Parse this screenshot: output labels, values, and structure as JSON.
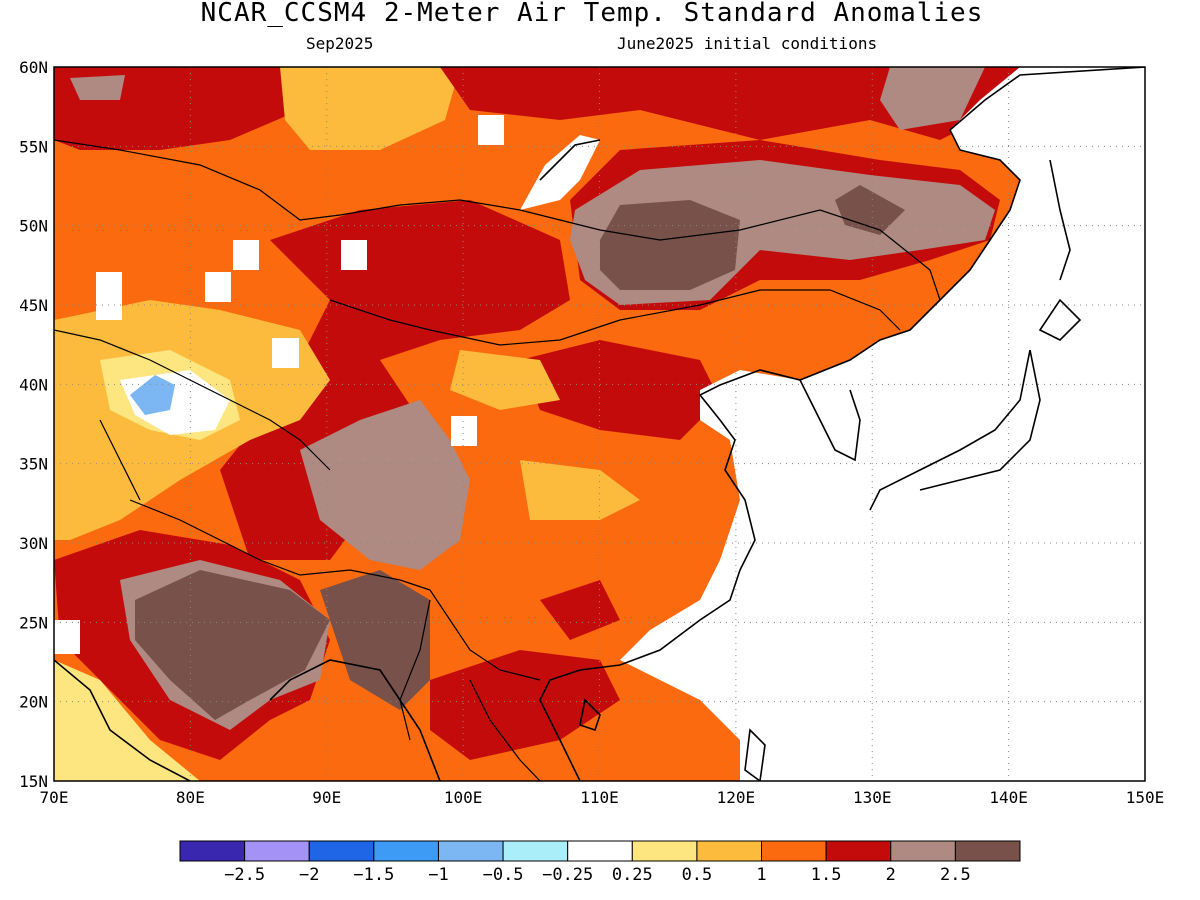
{
  "header": {
    "title": "NCAR_CCSM4 2-Meter Air Temp. Standard Anomalies",
    "valid_month": "Sep2025",
    "init_conditions": "June2025 initial conditions"
  },
  "map": {
    "lat_ticks": [
      "60N",
      "55N",
      "50N",
      "45N",
      "40N",
      "35N",
      "30N",
      "25N",
      "20N",
      "15N"
    ],
    "lon_ticks": [
      "70E",
      "80E",
      "90E",
      "100E",
      "110E",
      "120E",
      "130E",
      "140E",
      "150E"
    ],
    "lon_range": [
      70,
      150
    ],
    "lat_range": [
      15,
      60
    ],
    "grid": "dotted"
  },
  "colorbar": {
    "colors": [
      "#3a27b0",
      "#a492f7",
      "#1f66e6",
      "#3d9af5",
      "#7db7f3",
      "#aaeefa",
      "#ffffff",
      "#fde57f",
      "#fcbb3d",
      "#fb6a0e",
      "#c40b0b",
      "#ae8a82",
      "#77514a"
    ],
    "labels": [
      "-2.5",
      "-2",
      "-1.5",
      "-1",
      "-0.5",
      "-0.25",
      "0.25",
      "0.5",
      "1",
      "1.5",
      "2",
      "2.5"
    ]
  }
}
